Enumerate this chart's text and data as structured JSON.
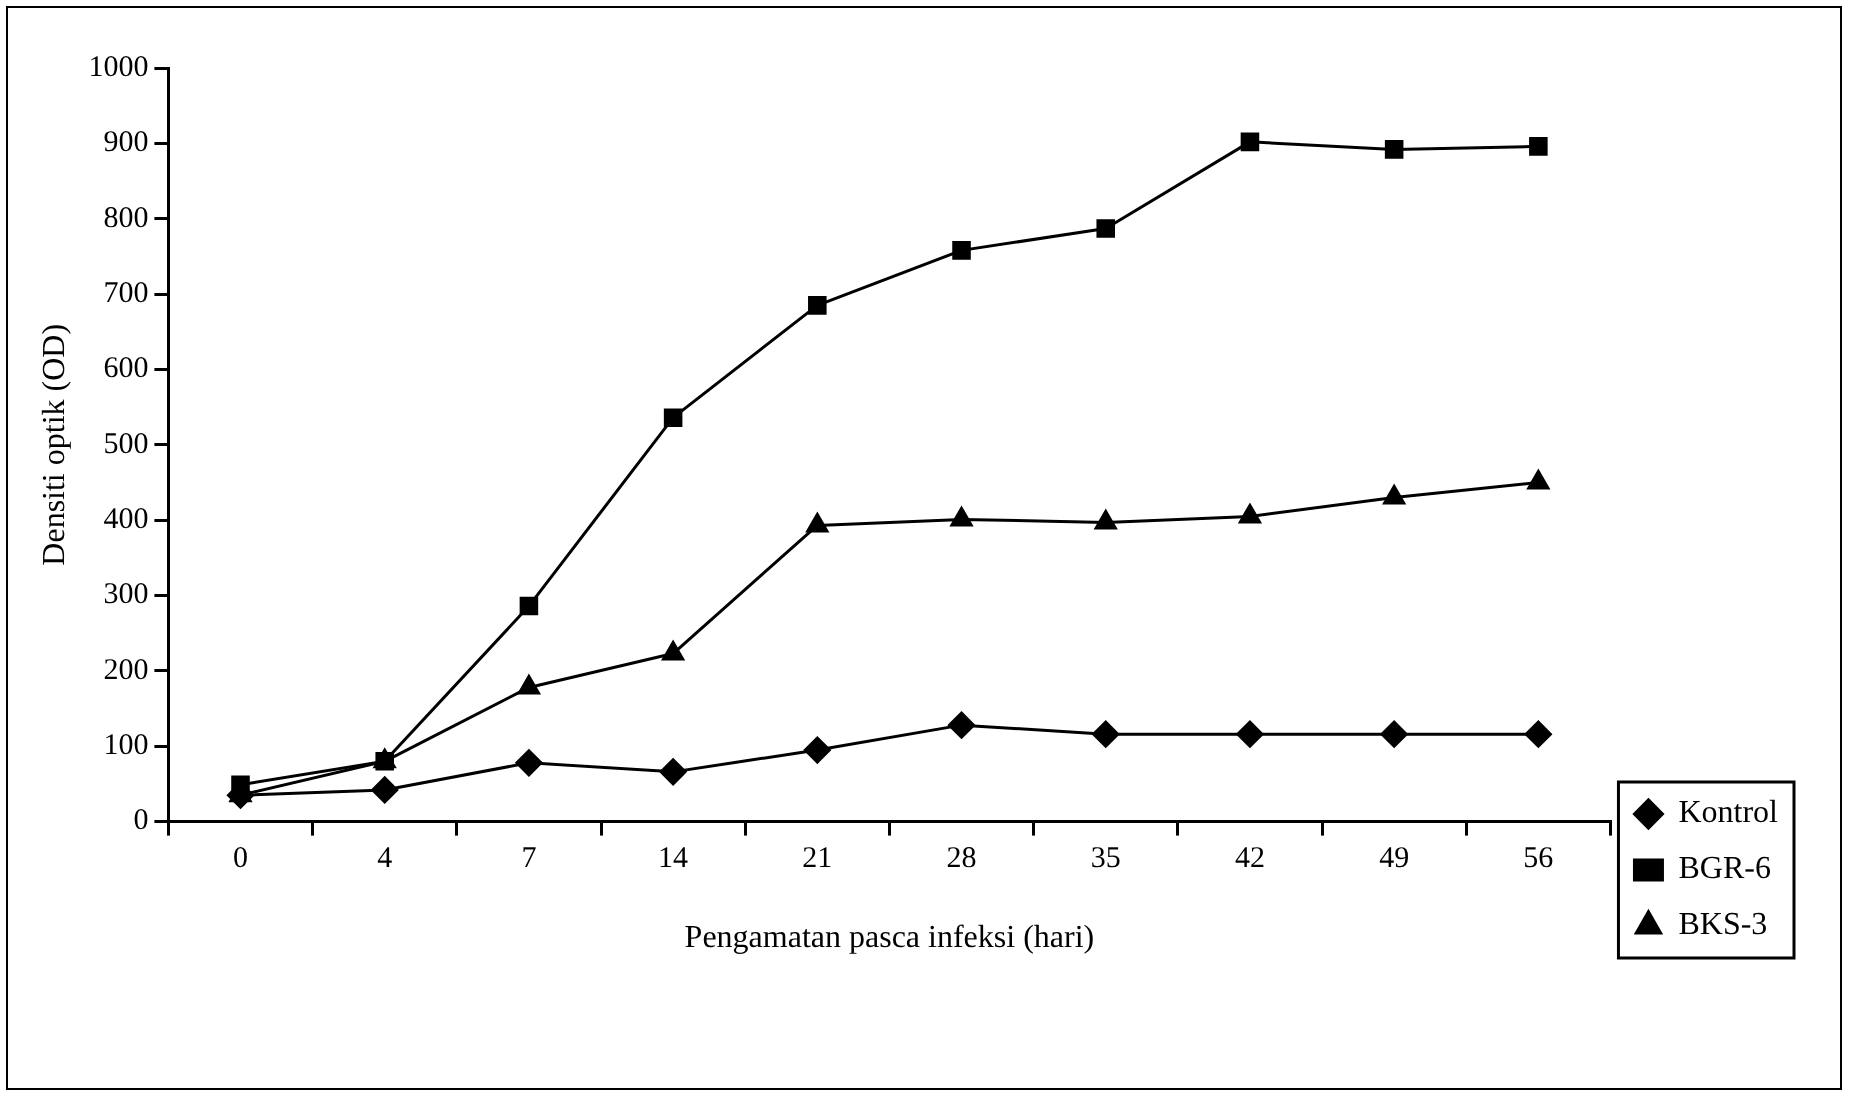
{
  "chart_data": {
    "type": "line",
    "xlabel": "Pengamatan pasca infeksi (hari)",
    "ylabel": "Densiti optik (OD)",
    "categories": [
      "0",
      "4",
      "7",
      "14",
      "21",
      "28",
      "35",
      "42",
      "49",
      "56"
    ],
    "series": [
      {
        "name": "Kontrol",
        "color": "#000000",
        "marker": "diamond",
        "values": [
          35,
          42,
          78,
          66,
          95,
          128,
          116,
          116,
          116,
          116
        ]
      },
      {
        "name": "BGR-6",
        "color": "#000000",
        "marker": "square",
        "values": [
          49,
          80,
          286,
          536,
          685,
          758,
          787,
          902,
          892,
          896
        ]
      },
      {
        "name": "BKS-3",
        "color": "#000000",
        "marker": "triangle",
        "values": [
          35,
          80,
          178,
          223,
          393,
          401,
          397,
          405,
          430,
          450
        ]
      }
    ],
    "ylim": [
      0,
      1000
    ],
    "yticks": [
      0,
      100,
      200,
      300,
      400,
      500,
      600,
      700,
      800,
      900,
      1000
    ],
    "grid": false,
    "legend": "right",
    "line_style": "solid"
  }
}
